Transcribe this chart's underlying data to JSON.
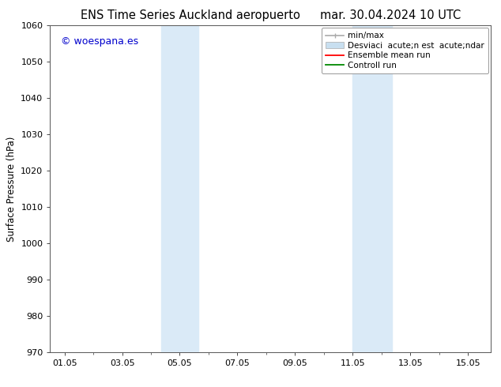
{
  "title_left": "ENS Time Series Auckland aeropuerto",
  "title_right": "mar. 30.04.2024 10 UTC",
  "ylabel": "Surface Pressure (hPa)",
  "ylim": [
    970,
    1060
  ],
  "yticks": [
    970,
    980,
    990,
    1000,
    1010,
    1020,
    1030,
    1040,
    1050,
    1060
  ],
  "xtick_positions": [
    1,
    3,
    5,
    7,
    9,
    11,
    13,
    15
  ],
  "xtick_labels": [
    "01.05",
    "03.05",
    "05.05",
    "07.05",
    "09.05",
    "11.05",
    "13.05",
    "15.05"
  ],
  "xlim": [
    0.5,
    15.8
  ],
  "watermark": "© woespana.es",
  "watermark_color": "#0000cc",
  "bg_color": "#ffffff",
  "shaded_regions": [
    {
      "x_start": 4.35,
      "x_end": 5.65
    },
    {
      "x_start": 11.0,
      "x_end": 12.35
    }
  ],
  "shaded_color": "#daeaf7",
  "legend_label_1": "min/max",
  "legend_label_2": "Desviaci  acute;n est  acute;ndar",
  "legend_label_3": "Ensemble mean run",
  "legend_label_4": "Controll run",
  "legend_color_1": "#aaaaaa",
  "legend_color_2": "#c8dff0",
  "legend_color_3": "#ff0000",
  "legend_color_4": "#008800",
  "font_size_title": 10.5,
  "font_size_axis": 8.5,
  "font_size_tick": 8,
  "font_size_legend": 7.5,
  "font_size_watermark": 9
}
